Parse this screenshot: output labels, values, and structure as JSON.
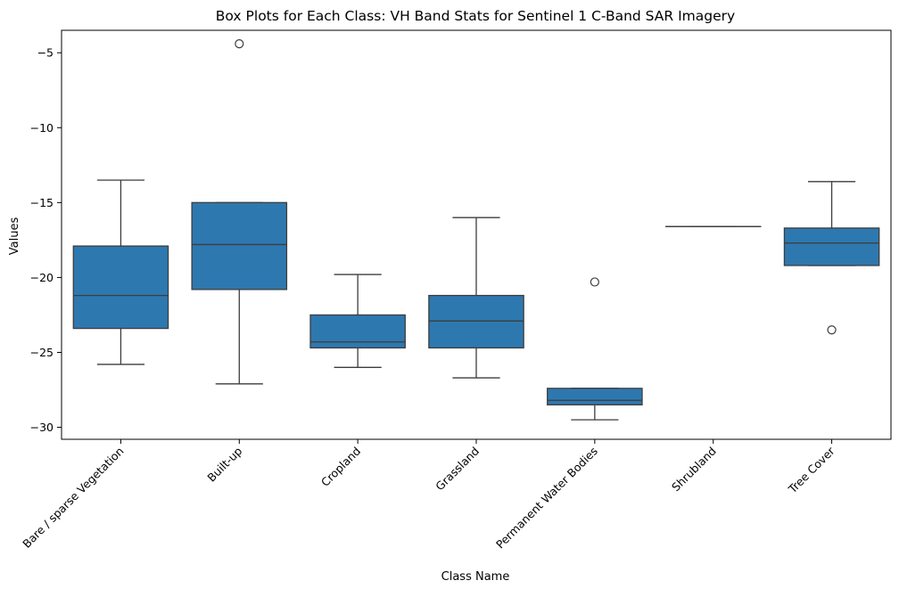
{
  "chart_data": {
    "type": "box",
    "title": "Box Plots for Each Class: VH Band Stats for Sentinel 1 C-Band SAR Imagery",
    "xlabel": "Class Name",
    "ylabel": "Values",
    "ylim": [
      -30.8,
      -3.5
    ],
    "yticks": [
      -5,
      -10,
      -15,
      -20,
      -25,
      -30
    ],
    "ytick_labels": [
      "−5",
      "−10",
      "−15",
      "−20",
      "−25",
      "−30"
    ],
    "grid": false,
    "box_color": "#2e78b0",
    "line_color": "#3d3d3d",
    "categories": [
      "Bare / sparse Vegetation",
      "Built-up",
      "Cropland",
      "Grassland",
      "Permanent Water Bodies",
      "Shrubland",
      "Tree Cover"
    ],
    "boxes": [
      {
        "whisker_low": -25.8,
        "q1": -23.4,
        "median": -21.2,
        "q3": -17.9,
        "whisker_high": -13.5,
        "outliers": []
      },
      {
        "whisker_low": -27.1,
        "q1": -20.8,
        "median": -17.8,
        "q3": -15.0,
        "whisker_high": -15.0,
        "outliers": [
          -4.4
        ]
      },
      {
        "whisker_low": -26.0,
        "q1": -24.7,
        "median": -24.3,
        "q3": -22.5,
        "whisker_high": -19.8,
        "outliers": []
      },
      {
        "whisker_low": -26.7,
        "q1": -24.7,
        "median": -22.9,
        "q3": -21.2,
        "whisker_high": -16.0,
        "outliers": []
      },
      {
        "whisker_low": -29.5,
        "q1": -28.5,
        "median": -28.2,
        "q3": -27.4,
        "whisker_high": -27.4,
        "outliers": [
          -20.3
        ]
      },
      {
        "whisker_low": -16.6,
        "q1": -16.6,
        "median": -16.6,
        "q3": -16.6,
        "whisker_high": -16.6,
        "outliers": []
      },
      {
        "whisker_low": -19.2,
        "q1": -19.2,
        "median": -17.7,
        "q3": -16.7,
        "whisker_high": -13.6,
        "outliers": [
          -23.5
        ]
      }
    ]
  }
}
